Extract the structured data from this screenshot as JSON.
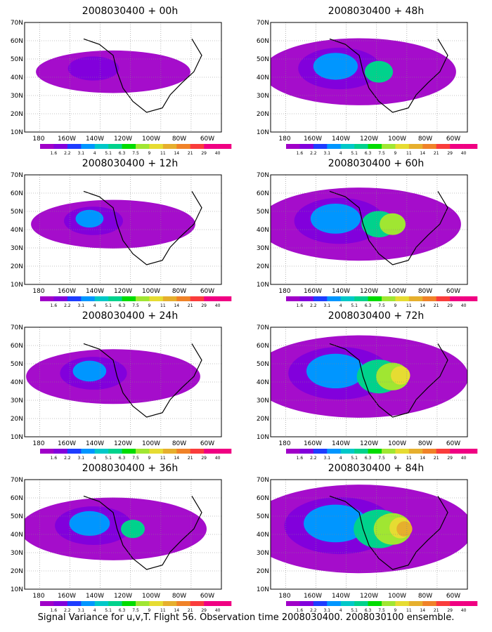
{
  "panels": [
    {
      "title": "2008030400 + 00h",
      "level": 0.05
    },
    {
      "title": "2008030400 + 12h",
      "level": 0.15
    },
    {
      "title": "2008030400 + 24h",
      "level": 0.25
    },
    {
      "title": "2008030400 + 36h",
      "level": 0.38
    },
    {
      "title": "2008030400 + 48h",
      "level": 0.45
    },
    {
      "title": "2008030400 + 60h",
      "level": 0.55
    },
    {
      "title": "2008030400 + 72h",
      "level": 0.7
    },
    {
      "title": "2008030400 + 84h",
      "level": 0.8
    }
  ],
  "axes": {
    "lat_labels": [
      "70N",
      "60N",
      "50N",
      "40N",
      "30N",
      "20N",
      "10N"
    ],
    "lon_labels": [
      "180",
      "160W",
      "140W",
      "120W",
      "100W",
      "80W",
      "60W"
    ]
  },
  "colorbar": {
    "labels": [
      "1.6",
      "2.2",
      "3.1",
      "4",
      "5.1",
      "6.3",
      "7.5",
      "9",
      "11",
      "14",
      "21",
      "29",
      "40"
    ],
    "colors": [
      "#a000c8",
      "#8200dc",
      "#1e3cff",
      "#0096ff",
      "#00c8c8",
      "#00d28c",
      "#00dc00",
      "#a0e632",
      "#e6dc32",
      "#e6af2d",
      "#f08228",
      "#fa3c3c",
      "#f00082"
    ]
  },
  "footer": "Signal Variance for u,v,T. Flight 56. Observation time 2008030400. 2008030100 ensemble."
}
